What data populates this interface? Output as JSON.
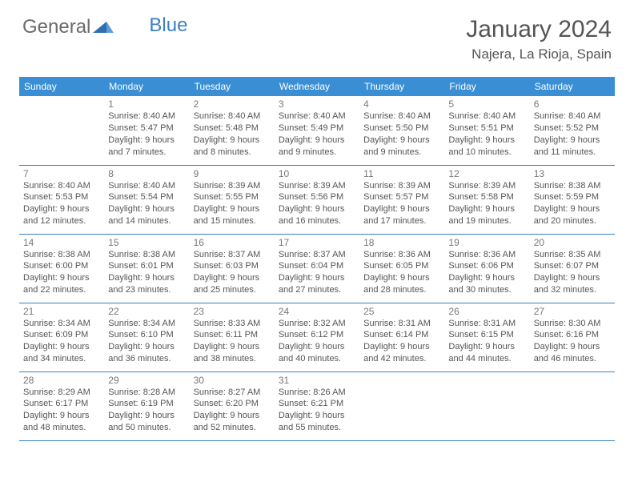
{
  "brand": {
    "part1": "General",
    "part2": "Blue"
  },
  "title": "January 2024",
  "location": "Najera, La Rioja, Spain",
  "colors": {
    "header_bg": "#3a8fd4",
    "header_text": "#ffffff",
    "border": "#3a7fc4",
    "text": "#555555",
    "daynum": "#777777",
    "brand_gray": "#6b6b6b",
    "brand_blue": "#3a7fc4",
    "page_bg": "#ffffff"
  },
  "day_headers": [
    "Sunday",
    "Monday",
    "Tuesday",
    "Wednesday",
    "Thursday",
    "Friday",
    "Saturday"
  ],
  "weeks": [
    [
      {
        "n": "",
        "sr": "",
        "ss": "",
        "dl": ""
      },
      {
        "n": "1",
        "sr": "Sunrise: 8:40 AM",
        "ss": "Sunset: 5:47 PM",
        "dl": "Daylight: 9 hours and 7 minutes."
      },
      {
        "n": "2",
        "sr": "Sunrise: 8:40 AM",
        "ss": "Sunset: 5:48 PM",
        "dl": "Daylight: 9 hours and 8 minutes."
      },
      {
        "n": "3",
        "sr": "Sunrise: 8:40 AM",
        "ss": "Sunset: 5:49 PM",
        "dl": "Daylight: 9 hours and 9 minutes."
      },
      {
        "n": "4",
        "sr": "Sunrise: 8:40 AM",
        "ss": "Sunset: 5:50 PM",
        "dl": "Daylight: 9 hours and 9 minutes."
      },
      {
        "n": "5",
        "sr": "Sunrise: 8:40 AM",
        "ss": "Sunset: 5:51 PM",
        "dl": "Daylight: 9 hours and 10 minutes."
      },
      {
        "n": "6",
        "sr": "Sunrise: 8:40 AM",
        "ss": "Sunset: 5:52 PM",
        "dl": "Daylight: 9 hours and 11 minutes."
      }
    ],
    [
      {
        "n": "7",
        "sr": "Sunrise: 8:40 AM",
        "ss": "Sunset: 5:53 PM",
        "dl": "Daylight: 9 hours and 12 minutes."
      },
      {
        "n": "8",
        "sr": "Sunrise: 8:40 AM",
        "ss": "Sunset: 5:54 PM",
        "dl": "Daylight: 9 hours and 14 minutes."
      },
      {
        "n": "9",
        "sr": "Sunrise: 8:39 AM",
        "ss": "Sunset: 5:55 PM",
        "dl": "Daylight: 9 hours and 15 minutes."
      },
      {
        "n": "10",
        "sr": "Sunrise: 8:39 AM",
        "ss": "Sunset: 5:56 PM",
        "dl": "Daylight: 9 hours and 16 minutes."
      },
      {
        "n": "11",
        "sr": "Sunrise: 8:39 AM",
        "ss": "Sunset: 5:57 PM",
        "dl": "Daylight: 9 hours and 17 minutes."
      },
      {
        "n": "12",
        "sr": "Sunrise: 8:39 AM",
        "ss": "Sunset: 5:58 PM",
        "dl": "Daylight: 9 hours and 19 minutes."
      },
      {
        "n": "13",
        "sr": "Sunrise: 8:38 AM",
        "ss": "Sunset: 5:59 PM",
        "dl": "Daylight: 9 hours and 20 minutes."
      }
    ],
    [
      {
        "n": "14",
        "sr": "Sunrise: 8:38 AM",
        "ss": "Sunset: 6:00 PM",
        "dl": "Daylight: 9 hours and 22 minutes."
      },
      {
        "n": "15",
        "sr": "Sunrise: 8:38 AM",
        "ss": "Sunset: 6:01 PM",
        "dl": "Daylight: 9 hours and 23 minutes."
      },
      {
        "n": "16",
        "sr": "Sunrise: 8:37 AM",
        "ss": "Sunset: 6:03 PM",
        "dl": "Daylight: 9 hours and 25 minutes."
      },
      {
        "n": "17",
        "sr": "Sunrise: 8:37 AM",
        "ss": "Sunset: 6:04 PM",
        "dl": "Daylight: 9 hours and 27 minutes."
      },
      {
        "n": "18",
        "sr": "Sunrise: 8:36 AM",
        "ss": "Sunset: 6:05 PM",
        "dl": "Daylight: 9 hours and 28 minutes."
      },
      {
        "n": "19",
        "sr": "Sunrise: 8:36 AM",
        "ss": "Sunset: 6:06 PM",
        "dl": "Daylight: 9 hours and 30 minutes."
      },
      {
        "n": "20",
        "sr": "Sunrise: 8:35 AM",
        "ss": "Sunset: 6:07 PM",
        "dl": "Daylight: 9 hours and 32 minutes."
      }
    ],
    [
      {
        "n": "21",
        "sr": "Sunrise: 8:34 AM",
        "ss": "Sunset: 6:09 PM",
        "dl": "Daylight: 9 hours and 34 minutes."
      },
      {
        "n": "22",
        "sr": "Sunrise: 8:34 AM",
        "ss": "Sunset: 6:10 PM",
        "dl": "Daylight: 9 hours and 36 minutes."
      },
      {
        "n": "23",
        "sr": "Sunrise: 8:33 AM",
        "ss": "Sunset: 6:11 PM",
        "dl": "Daylight: 9 hours and 38 minutes."
      },
      {
        "n": "24",
        "sr": "Sunrise: 8:32 AM",
        "ss": "Sunset: 6:12 PM",
        "dl": "Daylight: 9 hours and 40 minutes."
      },
      {
        "n": "25",
        "sr": "Sunrise: 8:31 AM",
        "ss": "Sunset: 6:14 PM",
        "dl": "Daylight: 9 hours and 42 minutes."
      },
      {
        "n": "26",
        "sr": "Sunrise: 8:31 AM",
        "ss": "Sunset: 6:15 PM",
        "dl": "Daylight: 9 hours and 44 minutes."
      },
      {
        "n": "27",
        "sr": "Sunrise: 8:30 AM",
        "ss": "Sunset: 6:16 PM",
        "dl": "Daylight: 9 hours and 46 minutes."
      }
    ],
    [
      {
        "n": "28",
        "sr": "Sunrise: 8:29 AM",
        "ss": "Sunset: 6:17 PM",
        "dl": "Daylight: 9 hours and 48 minutes."
      },
      {
        "n": "29",
        "sr": "Sunrise: 8:28 AM",
        "ss": "Sunset: 6:19 PM",
        "dl": "Daylight: 9 hours and 50 minutes."
      },
      {
        "n": "30",
        "sr": "Sunrise: 8:27 AM",
        "ss": "Sunset: 6:20 PM",
        "dl": "Daylight: 9 hours and 52 minutes."
      },
      {
        "n": "31",
        "sr": "Sunrise: 8:26 AM",
        "ss": "Sunset: 6:21 PM",
        "dl": "Daylight: 9 hours and 55 minutes."
      },
      {
        "n": "",
        "sr": "",
        "ss": "",
        "dl": ""
      },
      {
        "n": "",
        "sr": "",
        "ss": "",
        "dl": ""
      },
      {
        "n": "",
        "sr": "",
        "ss": "",
        "dl": ""
      }
    ]
  ]
}
